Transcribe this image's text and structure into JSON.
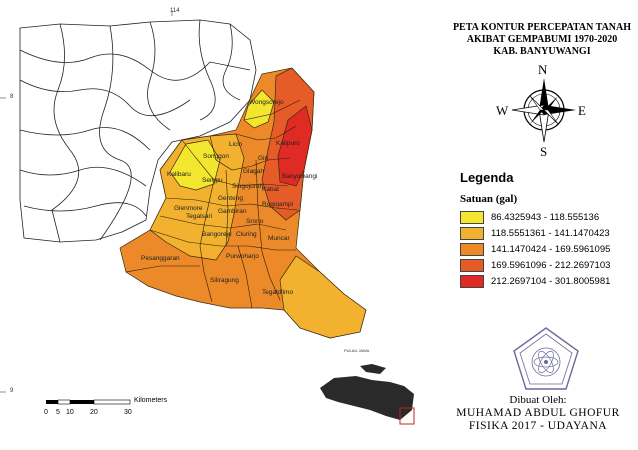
{
  "title": {
    "line1": "PETA KONTUR PERCEPATAN TANAH",
    "line2": "AKIBAT GEMPABUMI 1970-2020",
    "line3": "KAB. BANYUWANGI"
  },
  "compass": {
    "n": "N",
    "s": "S",
    "e": "E",
    "w": "W"
  },
  "legend": {
    "title": "Legenda",
    "subtitle": "Satuan (gal)",
    "classes": [
      {
        "label": "86.4325943 - 118.555136",
        "color": "#f2e62e"
      },
      {
        "label": "118.5551361 - 141.1470423",
        "color": "#f2b12e"
      },
      {
        "label": "141.1470424 - 169.5961095",
        "color": "#ec8a2a"
      },
      {
        "label": "169.5961096 - 212.2697103",
        "color": "#e65c28"
      },
      {
        "label": "212.2697104 - 301.8005981",
        "color": "#e02a24"
      }
    ]
  },
  "places": [
    {
      "name": "Wongsorejo"
    },
    {
      "name": "Kalipuro"
    },
    {
      "name": "Licin"
    },
    {
      "name": "Giri"
    },
    {
      "name": "Songgon"
    },
    {
      "name": "Glagah"
    },
    {
      "name": "Banyuwangi"
    },
    {
      "name": "Kalibaru"
    },
    {
      "name": "Sempu"
    },
    {
      "name": "Singojuruh"
    },
    {
      "name": "Kabat"
    },
    {
      "name": "Genteng"
    },
    {
      "name": "Rogojampi"
    },
    {
      "name": "Glenmore"
    },
    {
      "name": "Tegalsari"
    },
    {
      "name": "Gambiran"
    },
    {
      "name": "Srono"
    },
    {
      "name": "Bangorejo"
    },
    {
      "name": "Cluring"
    },
    {
      "name": "Muncar"
    },
    {
      "name": "Pesanggaran"
    },
    {
      "name": "Purwoharjo"
    },
    {
      "name": "Siliragung"
    },
    {
      "name": "Tegaldlimo"
    }
  ],
  "inset": {
    "label": "PULAU JAWA"
  },
  "scale": {
    "ticks": [
      "0",
      "5",
      "10",
      "20",
      "30"
    ],
    "unit": "Kilometers"
  },
  "coords": {
    "top": "114",
    "left_upper": "8",
    "left_lower": "9"
  },
  "author": {
    "line1": "Dibuat Oleh:",
    "line2": "MUHAMAD ABDUL GHOFUR",
    "line3": "FISIKA 2017 - UDAYANA"
  }
}
